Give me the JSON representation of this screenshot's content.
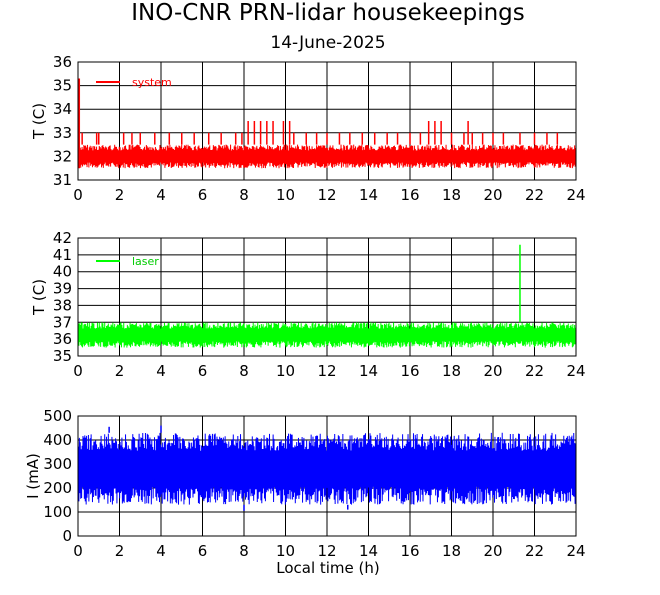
{
  "title": "INO-CNR PRN-lidar housekeepings",
  "subtitle": "14-June-2025",
  "chart_data": [
    {
      "type": "line",
      "ylabel": "T (C)",
      "xlabel": "",
      "xlim": [
        0,
        24
      ],
      "ylim": [
        31,
        36
      ],
      "xticks": [
        0,
        2,
        4,
        6,
        8,
        10,
        12,
        14,
        16,
        18,
        20,
        22,
        24
      ],
      "yticks": [
        31,
        32,
        33,
        34,
        35,
        36
      ],
      "grid": true,
      "legend_position": "top-left",
      "color": "#ff0000",
      "series": [
        {
          "name": "system",
          "band": [
            31.5,
            32.5
          ],
          "start_spike": 35.3,
          "x": [
            0.2,
            0.9,
            1.0,
            2.2,
            2.6,
            3.0,
            3.7,
            4.4,
            5.0,
            5.6,
            6.3,
            6.9,
            7.6,
            7.9,
            8.2,
            8.5,
            8.8,
            9.1,
            9.4,
            9.9,
            10.2,
            10.4,
            11.0,
            11.5,
            12.0,
            12.6,
            13.1,
            13.7,
            14.3,
            14.9,
            15.4,
            16.0,
            16.5,
            16.9,
            17.2,
            17.5,
            18.0,
            18.6,
            18.8,
            19.0,
            19.5,
            20.0,
            20.5,
            21.3,
            22.0,
            22.6,
            23.1
          ],
          "y": [
            33.0,
            33.0,
            33.0,
            33.0,
            33.0,
            33.0,
            33.0,
            33.0,
            33.0,
            33.0,
            33.0,
            33.0,
            33.0,
            33.0,
            33.5,
            33.5,
            33.5,
            33.5,
            33.5,
            33.5,
            33.5,
            33.0,
            33.0,
            33.0,
            33.0,
            33.0,
            33.0,
            33.0,
            33.0,
            33.0,
            33.0,
            33.0,
            33.0,
            33.5,
            33.5,
            33.5,
            33.0,
            33.0,
            33.5,
            33.0,
            33.0,
            33.0,
            33.0,
            33.0,
            33.0,
            33.0,
            33.0
          ]
        }
      ]
    },
    {
      "type": "line",
      "ylabel": "T (C)",
      "xlabel": "",
      "xlim": [
        0,
        24
      ],
      "ylim": [
        35,
        42
      ],
      "xticks": [
        0,
        2,
        4,
        6,
        8,
        10,
        12,
        14,
        16,
        18,
        20,
        22,
        24
      ],
      "yticks": [
        35,
        36,
        37,
        38,
        39,
        40,
        41,
        42
      ],
      "grid": true,
      "legend_position": "top-left",
      "color": "#00ff00",
      "series": [
        {
          "name": "laser",
          "band": [
            35.5,
            37.0
          ],
          "x": [
            21.3
          ],
          "y": [
            41.6
          ]
        }
      ]
    },
    {
      "type": "line",
      "ylabel": "I (mA)",
      "xlabel": "Local time (h)",
      "xlim": [
        0,
        24
      ],
      "ylim": [
        0,
        500
      ],
      "xticks": [
        0,
        2,
        4,
        6,
        8,
        10,
        12,
        14,
        16,
        18,
        20,
        22,
        24
      ],
      "yticks": [
        0,
        100,
        200,
        300,
        400,
        500
      ],
      "grid": true,
      "legend_position": "top-left",
      "color": "#0000ff",
      "series": [
        {
          "name": "",
          "band": [
            130,
            430
          ],
          "x": [
            1.5,
            4.0,
            8.0,
            13.0
          ],
          "y": [
            455,
            460,
            105,
            110
          ]
        }
      ]
    }
  ]
}
